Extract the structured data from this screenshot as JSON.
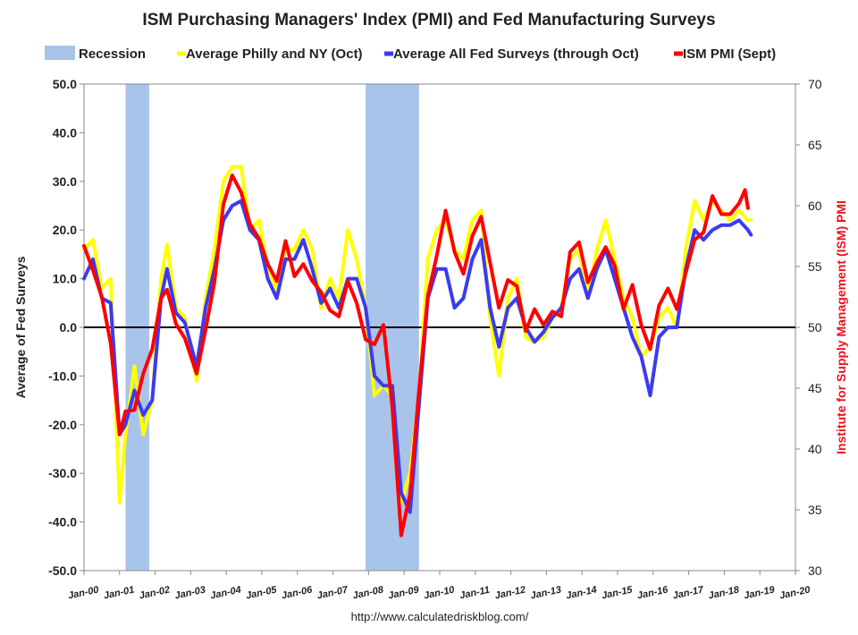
{
  "chart_data": {
    "type": "line",
    "title": "ISM Purchasing Managers' Index (PMI) and Fed Manufacturing Surveys",
    "source": "http://www.calculatedriskblog.com/",
    "ylabel": "Average of Fed Surveys",
    "y2label": "Institute for Supply Management (ISM) PMI",
    "ylim": [
      -50,
      50
    ],
    "y2lim": [
      30,
      70
    ],
    "yticks": [
      "50.0",
      "40.0",
      "30.0",
      "20.0",
      "10.0",
      "0.0",
      "-10.0",
      "-20.0",
      "-30.0",
      "-40.0",
      "-50.0"
    ],
    "y2ticks": [
      "70",
      "65",
      "60",
      "55",
      "50",
      "45",
      "40",
      "35",
      "30"
    ],
    "xlim": [
      "2000-01",
      "2020-01"
    ],
    "xticks": [
      "Jan-00",
      "Jan-01",
      "Jan-02",
      "Jan-03",
      "Jan-04",
      "Jan-05",
      "Jan-06",
      "Jan-07",
      "Jan-08",
      "Jan-09",
      "Jan-10",
      "Jan-11",
      "Jan-12",
      "Jan-13",
      "Jan-14",
      "Jan-15",
      "Jan-16",
      "Jan-17",
      "Jan-18",
      "Jan-19",
      "Jan-20"
    ],
    "grid": false,
    "legend_position": "top",
    "legend": [
      {
        "label": "Recession",
        "color": "#a9c4ea",
        "kind": "box"
      },
      {
        "label": "Average Philly and NY (Oct)",
        "color": "#ffff00",
        "kind": "line"
      },
      {
        "label": "Average All Fed Surveys (through Oct)",
        "color": "#3b3bf0",
        "kind": "line"
      },
      {
        "label": "ISM PMI (Sept)",
        "color": "#ff0000",
        "kind": "line"
      }
    ],
    "recessions": [
      {
        "start": "2001-03",
        "end": "2001-11"
      },
      {
        "start": "2007-12",
        "end": "2009-06"
      }
    ],
    "series": [
      {
        "name": "Average Philly and NY (Oct)",
        "axis": "left",
        "color": "#ffff00",
        "points": [
          [
            "2000-01",
            16
          ],
          [
            "2000-04",
            18
          ],
          [
            "2000-07",
            8
          ],
          [
            "2000-10",
            10
          ],
          [
            "2001-01",
            -36
          ],
          [
            "2001-03",
            -22
          ],
          [
            "2001-06",
            -8
          ],
          [
            "2001-09",
            -22
          ],
          [
            "2001-12",
            -15
          ],
          [
            "2002-03",
            10
          ],
          [
            "2002-05",
            17
          ],
          [
            "2002-08",
            4
          ],
          [
            "2002-11",
            2
          ],
          [
            "2003-03",
            -11
          ],
          [
            "2003-06",
            6
          ],
          [
            "2003-09",
            16
          ],
          [
            "2003-12",
            30
          ],
          [
            "2004-03",
            33
          ],
          [
            "2004-06",
            33
          ],
          [
            "2004-09",
            20
          ],
          [
            "2004-12",
            22
          ],
          [
            "2005-03",
            12
          ],
          [
            "2005-06",
            8
          ],
          [
            "2005-09",
            16
          ],
          [
            "2005-12",
            16
          ],
          [
            "2006-03",
            20
          ],
          [
            "2006-06",
            16
          ],
          [
            "2006-09",
            4
          ],
          [
            "2006-12",
            10
          ],
          [
            "2007-03",
            6
          ],
          [
            "2007-06",
            20
          ],
          [
            "2007-09",
            14
          ],
          [
            "2007-12",
            4
          ],
          [
            "2008-03",
            -14
          ],
          [
            "2008-06",
            -12
          ],
          [
            "2008-09",
            -14
          ],
          [
            "2008-12",
            -36
          ],
          [
            "2009-03",
            -30
          ],
          [
            "2009-06",
            -14
          ],
          [
            "2009-09",
            14
          ],
          [
            "2009-12",
            20
          ],
          [
            "2010-03",
            22
          ],
          [
            "2010-06",
            16
          ],
          [
            "2010-09",
            14
          ],
          [
            "2010-12",
            22
          ],
          [
            "2011-03",
            24
          ],
          [
            "2011-06",
            2
          ],
          [
            "2011-09",
            -10
          ],
          [
            "2011-12",
            6
          ],
          [
            "2012-03",
            10
          ],
          [
            "2012-06",
            -2
          ],
          [
            "2012-09",
            -3
          ],
          [
            "2012-12",
            -2
          ],
          [
            "2013-03",
            2
          ],
          [
            "2013-06",
            4
          ],
          [
            "2013-09",
            14
          ],
          [
            "2013-12",
            16
          ],
          [
            "2014-03",
            6
          ],
          [
            "2014-06",
            16
          ],
          [
            "2014-09",
            22
          ],
          [
            "2014-12",
            14
          ],
          [
            "2015-03",
            6
          ],
          [
            "2015-06",
            2
          ],
          [
            "2015-09",
            -6
          ],
          [
            "2015-12",
            -4
          ],
          [
            "2016-03",
            2
          ],
          [
            "2016-06",
            4
          ],
          [
            "2016-09",
            0
          ],
          [
            "2016-12",
            16
          ],
          [
            "2017-03",
            26
          ],
          [
            "2017-06",
            22
          ],
          [
            "2017-09",
            26
          ],
          [
            "2017-12",
            24
          ],
          [
            "2018-03",
            22
          ],
          [
            "2018-06",
            24
          ],
          [
            "2018-09",
            22
          ],
          [
            "2018-10",
            22
          ]
        ]
      },
      {
        "name": "Average All Fed Surveys (through Oct)",
        "axis": "left",
        "color": "#3b3bf0",
        "points": [
          [
            "2000-01",
            10
          ],
          [
            "2000-04",
            14
          ],
          [
            "2000-07",
            6
          ],
          [
            "2000-10",
            5
          ],
          [
            "2001-01",
            -22
          ],
          [
            "2001-03",
            -20
          ],
          [
            "2001-06",
            -13
          ],
          [
            "2001-09",
            -18
          ],
          [
            "2001-12",
            -15
          ],
          [
            "2002-03",
            6
          ],
          [
            "2002-05",
            12
          ],
          [
            "2002-08",
            3
          ],
          [
            "2002-11",
            1
          ],
          [
            "2003-03",
            -8
          ],
          [
            "2003-06",
            4
          ],
          [
            "2003-09",
            12
          ],
          [
            "2003-12",
            22
          ],
          [
            "2004-03",
            25
          ],
          [
            "2004-06",
            26
          ],
          [
            "2004-09",
            20
          ],
          [
            "2004-12",
            18
          ],
          [
            "2005-03",
            10
          ],
          [
            "2005-06",
            6
          ],
          [
            "2005-09",
            14
          ],
          [
            "2005-12",
            14
          ],
          [
            "2006-03",
            18
          ],
          [
            "2006-06",
            12
          ],
          [
            "2006-09",
            5
          ],
          [
            "2006-12",
            8
          ],
          [
            "2007-03",
            4
          ],
          [
            "2007-06",
            10
          ],
          [
            "2007-09",
            10
          ],
          [
            "2007-12",
            4
          ],
          [
            "2008-03",
            -10
          ],
          [
            "2008-06",
            -12
          ],
          [
            "2008-09",
            -12
          ],
          [
            "2008-12",
            -34
          ],
          [
            "2009-03",
            -38
          ],
          [
            "2009-06",
            -16
          ],
          [
            "2009-09",
            6
          ],
          [
            "2009-12",
            12
          ],
          [
            "2010-03",
            12
          ],
          [
            "2010-06",
            4
          ],
          [
            "2010-09",
            6
          ],
          [
            "2010-12",
            14
          ],
          [
            "2011-03",
            18
          ],
          [
            "2011-06",
            4
          ],
          [
            "2011-09",
            -4
          ],
          [
            "2011-12",
            4
          ],
          [
            "2012-03",
            6
          ],
          [
            "2012-06",
            0
          ],
          [
            "2012-09",
            -3
          ],
          [
            "2012-12",
            -1
          ],
          [
            "2013-03",
            2
          ],
          [
            "2013-06",
            4
          ],
          [
            "2013-09",
            10
          ],
          [
            "2013-12",
            12
          ],
          [
            "2014-03",
            6
          ],
          [
            "2014-06",
            12
          ],
          [
            "2014-09",
            16
          ],
          [
            "2014-12",
            10
          ],
          [
            "2015-03",
            4
          ],
          [
            "2015-06",
            -2
          ],
          [
            "2015-09",
            -6
          ],
          [
            "2015-12",
            -14
          ],
          [
            "2016-03",
            -2
          ],
          [
            "2016-06",
            0
          ],
          [
            "2016-09",
            0
          ],
          [
            "2016-12",
            12
          ],
          [
            "2017-03",
            20
          ],
          [
            "2017-06",
            18
          ],
          [
            "2017-09",
            20
          ],
          [
            "2017-12",
            21
          ],
          [
            "2018-03",
            21
          ],
          [
            "2018-06",
            22
          ],
          [
            "2018-09",
            20
          ],
          [
            "2018-10",
            19
          ]
        ]
      },
      {
        "name": "ISM PMI (Sept)",
        "axis": "right",
        "color": "#ff0000",
        "points": [
          [
            "2000-01",
            56.7
          ],
          [
            "2000-04",
            54.7
          ],
          [
            "2000-07",
            52.5
          ],
          [
            "2000-10",
            48.7
          ],
          [
            "2001-01",
            41.2
          ],
          [
            "2001-03",
            43.1
          ],
          [
            "2001-06",
            43.2
          ],
          [
            "2001-09",
            46.2
          ],
          [
            "2001-12",
            48.2
          ],
          [
            "2002-03",
            52.4
          ],
          [
            "2002-05",
            53.1
          ],
          [
            "2002-08",
            50.3
          ],
          [
            "2002-11",
            49.1
          ],
          [
            "2003-03",
            46.2
          ],
          [
            "2003-06",
            49.8
          ],
          [
            "2003-09",
            53.7
          ],
          [
            "2003-12",
            60.1
          ],
          [
            "2004-03",
            62.5
          ],
          [
            "2004-06",
            61.1
          ],
          [
            "2004-09",
            58.5
          ],
          [
            "2004-12",
            57.3
          ],
          [
            "2005-03",
            55.2
          ],
          [
            "2005-06",
            53.8
          ],
          [
            "2005-09",
            57.1
          ],
          [
            "2005-12",
            54.2
          ],
          [
            "2006-03",
            55.2
          ],
          [
            "2006-06",
            53.8
          ],
          [
            "2006-09",
            52.9
          ],
          [
            "2006-12",
            51.4
          ],
          [
            "2007-03",
            50.9
          ],
          [
            "2007-06",
            53.8
          ],
          [
            "2007-09",
            52.0
          ],
          [
            "2007-12",
            49.0
          ],
          [
            "2008-03",
            48.6
          ],
          [
            "2008-06",
            50.2
          ],
          [
            "2008-09",
            43.5
          ],
          [
            "2008-12",
            32.9
          ],
          [
            "2009-03",
            36.3
          ],
          [
            "2009-06",
            44.8
          ],
          [
            "2009-09",
            52.6
          ],
          [
            "2009-12",
            55.9
          ],
          [
            "2010-03",
            59.6
          ],
          [
            "2010-06",
            56.2
          ],
          [
            "2010-09",
            54.4
          ],
          [
            "2010-12",
            57.5
          ],
          [
            "2011-03",
            59.1
          ],
          [
            "2011-06",
            55.3
          ],
          [
            "2011-09",
            51.6
          ],
          [
            "2011-12",
            53.9
          ],
          [
            "2012-03",
            53.4
          ],
          [
            "2012-06",
            49.7
          ],
          [
            "2012-09",
            51.5
          ],
          [
            "2012-12",
            50.2
          ],
          [
            "2013-03",
            51.3
          ],
          [
            "2013-06",
            50.9
          ],
          [
            "2013-09",
            56.2
          ],
          [
            "2013-12",
            57.0
          ],
          [
            "2014-03",
            53.7
          ],
          [
            "2014-06",
            55.3
          ],
          [
            "2014-09",
            56.6
          ],
          [
            "2014-12",
            55.1
          ],
          [
            "2015-03",
            51.5
          ],
          [
            "2015-06",
            53.5
          ],
          [
            "2015-09",
            50.2
          ],
          [
            "2015-12",
            48.2
          ],
          [
            "2016-03",
            51.8
          ],
          [
            "2016-06",
            53.2
          ],
          [
            "2016-09",
            51.5
          ],
          [
            "2016-12",
            54.5
          ],
          [
            "2017-03",
            57.2
          ],
          [
            "2017-06",
            57.8
          ],
          [
            "2017-09",
            60.8
          ],
          [
            "2017-12",
            59.3
          ],
          [
            "2018-03",
            59.3
          ],
          [
            "2018-06",
            60.2
          ],
          [
            "2018-08",
            61.3
          ],
          [
            "2018-09",
            59.8
          ]
        ]
      }
    ]
  }
}
